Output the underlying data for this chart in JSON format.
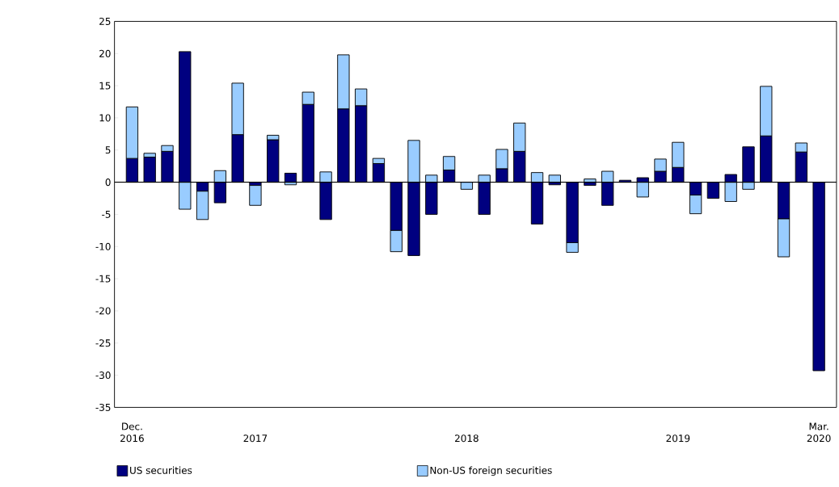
{
  "chart_data": {
    "type": "bar",
    "stacked": true,
    "categories": [
      "Dec. 2016",
      null,
      null,
      null,
      null,
      null,
      null,
      "2017",
      null,
      null,
      null,
      null,
      null,
      null,
      null,
      null,
      null,
      null,
      null,
      "2018",
      null,
      null,
      null,
      null,
      null,
      null,
      null,
      null,
      null,
      null,
      null,
      "2019",
      null,
      null,
      null,
      null,
      null,
      null,
      null,
      "Mar. 2020"
    ],
    "series": [
      {
        "name": "US securities",
        "color": "#000080",
        "values": [
          3.7,
          3.9,
          4.8,
          20.3,
          -1.4,
          -3.2,
          7.4,
          -0.5,
          6.6,
          1.4,
          12.1,
          -5.8,
          11.4,
          11.9,
          2.9,
          -7.5,
          -11.4,
          -5.0,
          1.9,
          0,
          -5.0,
          2.1,
          4.8,
          -6.5,
          -0.4,
          -9.4,
          -0.5,
          -3.6,
          0.3,
          0.7,
          1.7,
          2.3,
          -2.0,
          -2.5,
          1.2,
          5.5,
          7.2,
          -5.7,
          4.7,
          -29.3
        ]
      },
      {
        "name": "Non-US foreign securities",
        "color": "#99ccff",
        "values": [
          8.0,
          0.6,
          0.9,
          -4.2,
          -4.4,
          1.8,
          8.0,
          -3.1,
          0.7,
          -0.4,
          1.9,
          1.6,
          8.4,
          2.6,
          0.8,
          -3.3,
          6.5,
          1.1,
          2.1,
          -1.1,
          1.1,
          3.0,
          4.4,
          1.5,
          1.1,
          -1.5,
          0.5,
          1.7,
          0,
          -2.3,
          1.9,
          3.9,
          -2.9,
          0,
          -3.0,
          -1.1,
          7.7,
          -5.9,
          1.4,
          0
        ]
      }
    ],
    "ylim": [
      -35,
      25
    ],
    "yticks": [
      -35,
      -30,
      -25,
      -20,
      -15,
      -10,
      -5,
      0,
      5,
      10,
      15,
      20,
      25
    ],
    "ref_lines": [
      {
        "axis": "y",
        "value": 0
      }
    ],
    "legend": "bottom"
  }
}
